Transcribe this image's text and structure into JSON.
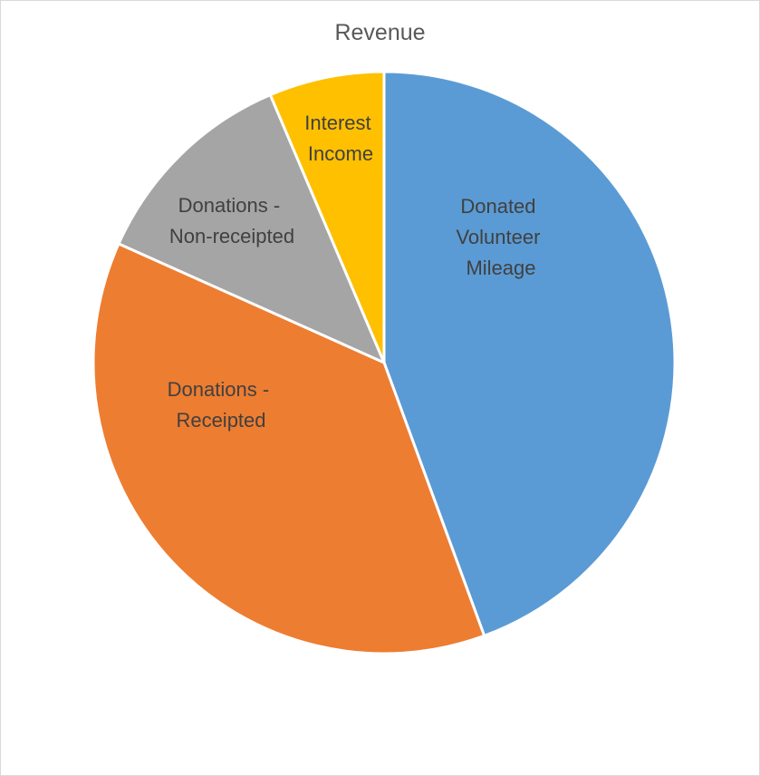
{
  "chart_data": {
    "type": "pie",
    "title": "Revenue",
    "categories": [
      "Donated Volunteer Mileage",
      "Donations - Receipted",
      "Donations - Non-receipted",
      "Interest Income"
    ],
    "values": [
      44.4,
      37.3,
      11.9,
      6.4
    ],
    "units": "percent (estimated from slice angles)",
    "colors": [
      "#5b9bd5",
      "#ed7d31",
      "#a5a5a5",
      "#ffc000"
    ],
    "start_angle": "12 o'clock, clockwise",
    "legend": "none (data labels inside slices)",
    "labels": [
      {
        "lines": [
          "Donated",
          "Volunteer",
          "Mileage"
        ]
      },
      {
        "lines": [
          "Donations -",
          "Receipted"
        ]
      },
      {
        "lines": [
          "Donations -",
          "Non-receipted"
        ]
      },
      {
        "lines": [
          "Interest",
          "Income"
        ]
      }
    ]
  }
}
